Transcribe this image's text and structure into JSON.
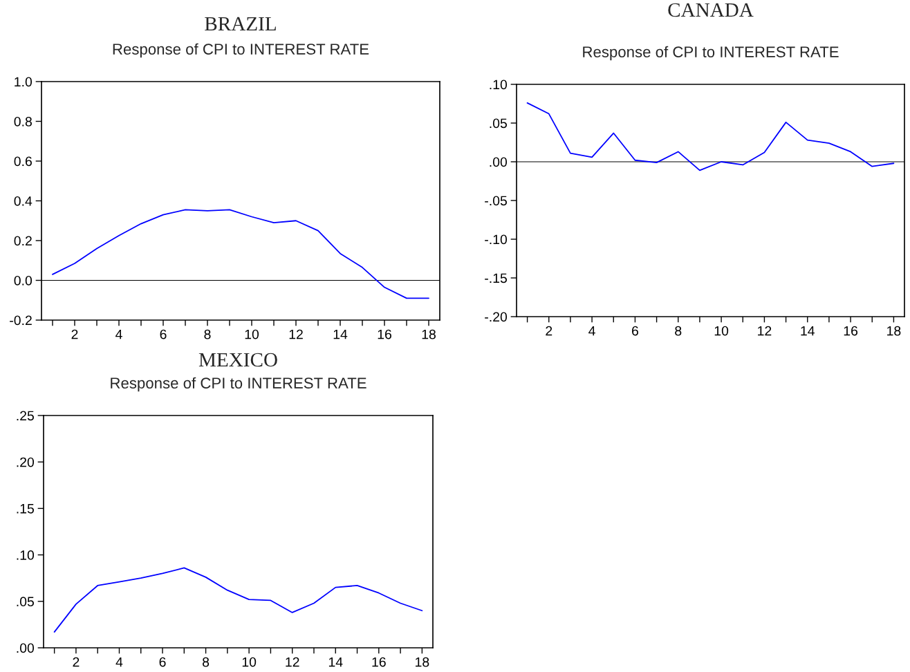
{
  "chart_data": [
    {
      "type": "line",
      "title": "BRAZIL",
      "subtitle": "Response of CPI to INTEREST RATE",
      "x": [
        1,
        2,
        3,
        4,
        5,
        6,
        7,
        8,
        9,
        10,
        11,
        12,
        13,
        14,
        15,
        16,
        17,
        18
      ],
      "series": [
        {
          "color": "#0000ff",
          "values": [
            0.03,
            0.085,
            0.16,
            0.225,
            0.285,
            0.33,
            0.355,
            0.35,
            0.355,
            0.32,
            0.29,
            0.3,
            0.25,
            0.135,
            0.065,
            -0.035,
            -0.09,
            -0.09
          ]
        }
      ],
      "xlim": [
        0.5,
        18.5
      ],
      "xticks": [
        {
          "value": 1,
          "label": null
        },
        2,
        {
          "value": 3,
          "label": null
        },
        4,
        {
          "value": 5,
          "label": null
        },
        6,
        {
          "value": 7,
          "label": null
        },
        8,
        {
          "value": 9,
          "label": null
        },
        10,
        {
          "value": 11,
          "label": null
        },
        12,
        {
          "value": 13,
          "label": null
        },
        14,
        {
          "value": 15,
          "label": null
        },
        16,
        {
          "value": 17,
          "label": null
        },
        18
      ],
      "ylim": [
        -0.2,
        1.0
      ],
      "yticks": [
        {
          "value": -0.2,
          "label": "-0.2"
        },
        {
          "value": 0.0,
          "label": "0.0"
        },
        {
          "value": 0.2,
          "label": "0.2"
        },
        {
          "value": 0.4,
          "label": "0.4"
        },
        {
          "value": 0.6,
          "label": "0.6"
        },
        {
          "value": 0.8,
          "label": "0.8"
        },
        {
          "value": 1.0,
          "label": "1.0"
        }
      ],
      "ref_lines": [
        {
          "axis": "y",
          "value": 0,
          "color": "#000000"
        }
      ],
      "grid": false,
      "legend": false
    },
    {
      "type": "line",
      "title": "CANADA",
      "subtitle": "Response of CPI to INTEREST RATE",
      "x": [
        1,
        2,
        3,
        4,
        5,
        6,
        7,
        8,
        9,
        10,
        11,
        12,
        13,
        14,
        15,
        16,
        17,
        18
      ],
      "series": [
        {
          "color": "#0000ff",
          "values": [
            0.076,
            0.062,
            0.011,
            0.006,
            0.037,
            0.002,
            -0.001,
            0.013,
            -0.011,
            0.0,
            -0.004,
            0.012,
            0.051,
            0.028,
            0.024,
            0.013,
            -0.006,
            -0.002
          ]
        }
      ],
      "xlim": [
        0.5,
        18.5
      ],
      "xticks": [
        {
          "value": 1,
          "label": null
        },
        2,
        {
          "value": 3,
          "label": null
        },
        4,
        {
          "value": 5,
          "label": null
        },
        6,
        {
          "value": 7,
          "label": null
        },
        8,
        {
          "value": 9,
          "label": null
        },
        10,
        {
          "value": 11,
          "label": null
        },
        12,
        {
          "value": 13,
          "label": null
        },
        14,
        {
          "value": 15,
          "label": null
        },
        16,
        {
          "value": 17,
          "label": null
        },
        18
      ],
      "ylim": [
        -0.2,
        0.1
      ],
      "yticks": [
        {
          "value": -0.2,
          "label": "-.20"
        },
        {
          "value": -0.15,
          "label": "-.15"
        },
        {
          "value": -0.1,
          "label": "-.10"
        },
        {
          "value": -0.05,
          "label": "-.05"
        },
        {
          "value": 0.0,
          "label": ".00"
        },
        {
          "value": 0.05,
          "label": ".05"
        },
        {
          "value": 0.1,
          "label": ".10"
        }
      ],
      "ref_lines": [
        {
          "axis": "y",
          "value": 0,
          "color": "#000000"
        }
      ],
      "grid": false,
      "legend": false
    },
    {
      "type": "line",
      "title": "MEXICO",
      "subtitle": "Response of CPI to INTEREST RATE",
      "x": [
        1,
        2,
        3,
        4,
        5,
        6,
        7,
        8,
        9,
        10,
        11,
        12,
        13,
        14,
        15,
        16,
        17,
        18
      ],
      "series": [
        {
          "color": "#0000ff",
          "values": [
            0.017,
            0.047,
            0.067,
            0.071,
            0.075,
            0.08,
            0.086,
            0.076,
            0.062,
            0.052,
            0.051,
            0.038,
            0.048,
            0.065,
            0.067,
            0.059,
            0.048,
            0.04
          ]
        }
      ],
      "xlim": [
        0.5,
        18.5
      ],
      "xticks": [
        {
          "value": 1,
          "label": null
        },
        2,
        {
          "value": 3,
          "label": null
        },
        4,
        {
          "value": 5,
          "label": null
        },
        6,
        {
          "value": 7,
          "label": null
        },
        8,
        {
          "value": 9,
          "label": null
        },
        10,
        {
          "value": 11,
          "label": null
        },
        12,
        {
          "value": 13,
          "label": null
        },
        14,
        {
          "value": 15,
          "label": null
        },
        16,
        {
          "value": 17,
          "label": null
        },
        18
      ],
      "ylim": [
        0.0,
        0.25
      ],
      "yticks": [
        {
          "value": 0.0,
          "label": ".00"
        },
        {
          "value": 0.05,
          "label": ".05"
        },
        {
          "value": 0.1,
          "label": ".10"
        },
        {
          "value": 0.15,
          "label": ".15"
        },
        {
          "value": 0.2,
          "label": ".20"
        },
        {
          "value": 0.25,
          "label": ".25"
        }
      ],
      "grid": false,
      "legend": false
    }
  ]
}
